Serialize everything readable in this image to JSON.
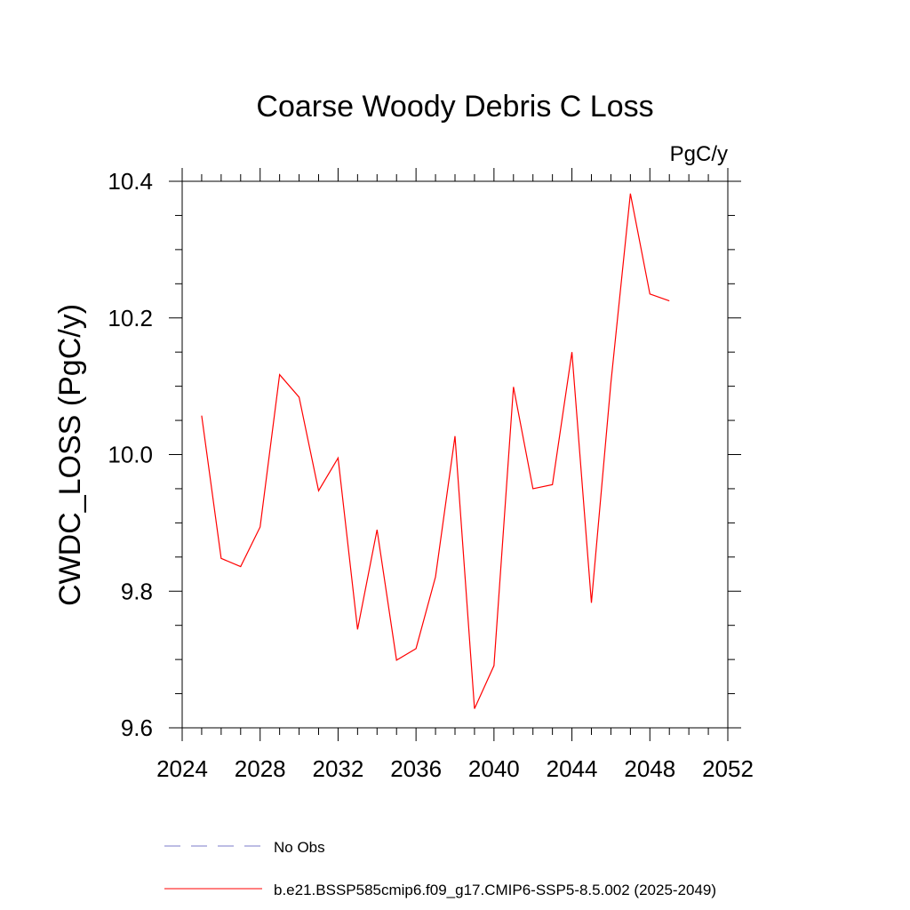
{
  "chart_data": {
    "type": "line",
    "title": "Coarse Woody Debris C Loss",
    "units": "PgC/y",
    "ylabel": "CWDC_LOSS  (PgC/y)",
    "xlabel": "",
    "xlim": [
      2024,
      2052
    ],
    "ylim": [
      9.6,
      10.4
    ],
    "x_ticks": [
      2024,
      2028,
      2032,
      2036,
      2040,
      2044,
      2048,
      2052
    ],
    "y_ticks": [
      9.6,
      9.8,
      10.0,
      10.2,
      10.4
    ],
    "x_tick_labels": [
      "2024",
      "2028",
      "2032",
      "2036",
      "2040",
      "2044",
      "2048",
      "2052"
    ],
    "y_tick_labels": [
      "9.6",
      "9.8",
      "10.0",
      "10.2",
      "10.4"
    ],
    "x_minor_step": 1,
    "y_minor_step": 0.05,
    "grid": false,
    "legend_position": "bottom",
    "legend": [
      {
        "label": "No Obs",
        "color": "#7b7bc9",
        "dash": true
      },
      {
        "label": "b.e21.BSSP585cmip6.f09_g17.CMIP6-SSP5-8.5.002 (2025-2049)",
        "color": "#ff0000",
        "dash": false
      }
    ],
    "series": [
      {
        "name": "b.e21.BSSP585cmip6.f09_g17.CMIP6-SSP5-8.5.002 (2025-2049)",
        "color": "#ff0000",
        "x": [
          2025,
          2026,
          2027,
          2028,
          2029,
          2030,
          2031,
          2032,
          2033,
          2034,
          2035,
          2036,
          2037,
          2038,
          2039,
          2040,
          2041,
          2042,
          2043,
          2044,
          2045,
          2046,
          2047,
          2048,
          2049
        ],
        "y": [
          10.057,
          9.848,
          9.836,
          9.894,
          10.117,
          10.084,
          9.947,
          9.995,
          9.744,
          9.89,
          9.699,
          9.716,
          9.821,
          10.027,
          9.628,
          9.691,
          10.099,
          9.95,
          9.956,
          10.15,
          9.783,
          10.105,
          10.382,
          10.235,
          10.225
        ]
      }
    ]
  }
}
